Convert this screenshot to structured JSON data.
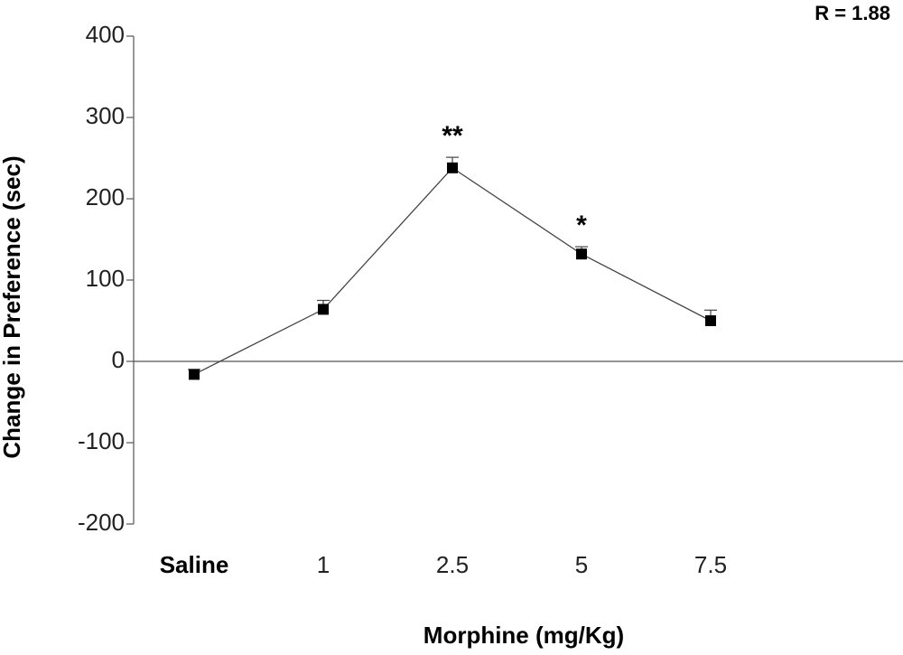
{
  "chart_data": {
    "type": "line",
    "corner_label": "R = 1.88",
    "x_label": "Morphine (mg/Kg)",
    "y_label": "Change in Preference (sec)",
    "categories": [
      "Saline",
      "1",
      "2.5",
      "5",
      "7.5"
    ],
    "values": [
      -16,
      64,
      238,
      132,
      50
    ],
    "errors": [
      6,
      11,
      13,
      9,
      13
    ],
    "annotations": [
      null,
      null,
      "**",
      "*",
      null
    ],
    "color": "#000000",
    "ylim": [
      -200,
      400
    ],
    "yticks": [
      -200,
      -100,
      0,
      100,
      200,
      300,
      400
    ]
  }
}
